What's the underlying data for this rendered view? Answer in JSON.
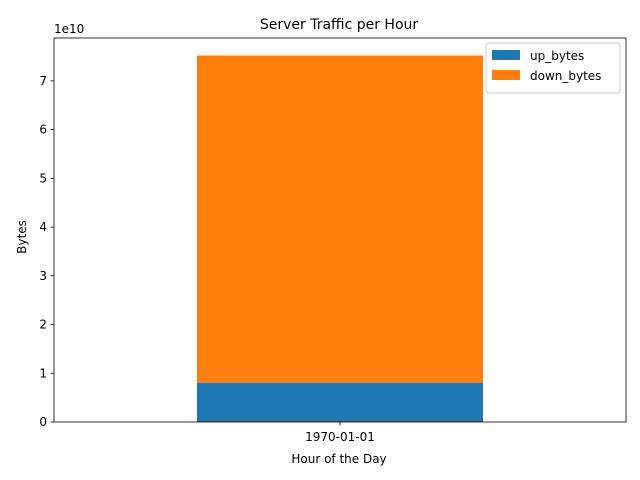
{
  "chart_data": {
    "type": "bar",
    "stacked": true,
    "title": "Server Traffic per Hour",
    "xlabel": "Hour of the Day",
    "ylabel": "Bytes",
    "y_offset_label": "1e10",
    "y_scale_factor": 10000000000,
    "categories": [
      "1970-01-01"
    ],
    "series": [
      {
        "name": "up_bytes",
        "color": "#1f77b4",
        "values": [
          8000000000.0
        ]
      },
      {
        "name": "down_bytes",
        "color": "#ff7f0e",
        "values": [
          67200000000.0
        ]
      }
    ],
    "ylim": [
      0,
      78800000000.0
    ],
    "yticks": [
      0,
      10000000000.0,
      20000000000.0,
      30000000000.0,
      40000000000.0,
      50000000000.0,
      60000000000.0,
      70000000000.0
    ],
    "ytick_labels": [
      "0",
      "1",
      "2",
      "3",
      "4",
      "5",
      "6",
      "7"
    ],
    "legend_position": "top-right",
    "grid": false
  }
}
